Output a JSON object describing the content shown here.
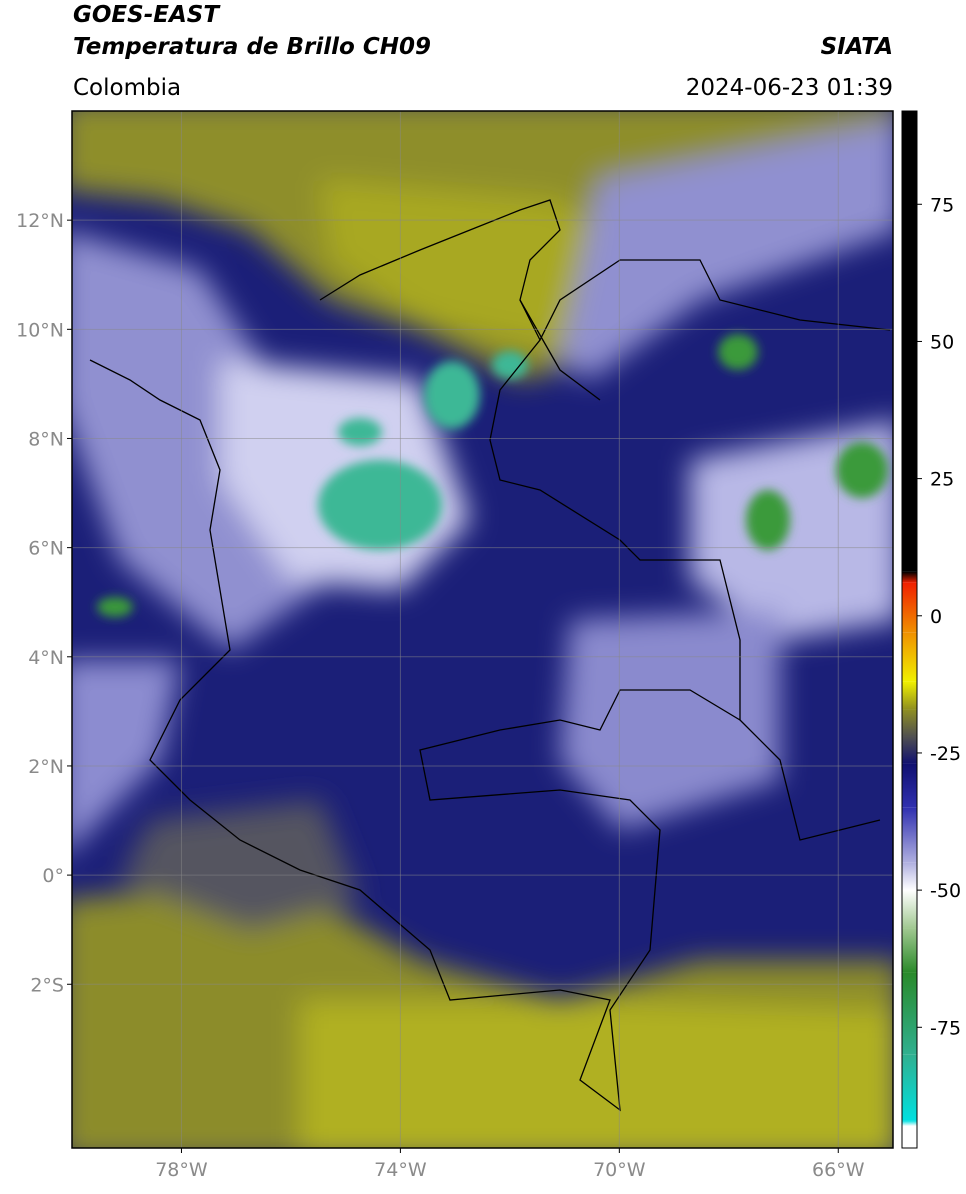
{
  "header": {
    "satellite": "GOES-EAST",
    "product": "Temperatura de Brillo CH09",
    "source": "SIATA",
    "region": "Colombia",
    "datetime": "2024-06-23 01:39"
  },
  "map": {
    "lon_range": [
      -80,
      -65
    ],
    "lat_range": [
      -5,
      14
    ],
    "grid": true,
    "lat_ticks": [
      {
        "value": 12,
        "label": "12°N"
      },
      {
        "value": 10,
        "label": "10°N"
      },
      {
        "value": 8,
        "label": "8°N"
      },
      {
        "value": 6,
        "label": "6°N"
      },
      {
        "value": 4,
        "label": "4°N"
      },
      {
        "value": 2,
        "label": "2°N"
      },
      {
        "value": 0,
        "label": "0°"
      },
      {
        "value": -2,
        "label": "2°S"
      }
    ],
    "lon_ticks": [
      {
        "value": -78,
        "label": "78°W"
      },
      {
        "value": -74,
        "label": "74°W"
      },
      {
        "value": -70,
        "label": "70°W"
      },
      {
        "value": -66,
        "label": "66°W"
      }
    ]
  },
  "colorbar": {
    "range": [
      -97,
      92
    ],
    "ticks": [
      75,
      50,
      25,
      0,
      -25,
      -50,
      -75
    ],
    "stops": [
      {
        "value": -97,
        "color": "#ffffff"
      },
      {
        "value": -93,
        "color": "#ffffff"
      },
      {
        "value": -92,
        "color": "#00e0e0"
      },
      {
        "value": -80,
        "color": "#30b090"
      },
      {
        "value": -65,
        "color": "#2a8a2a"
      },
      {
        "value": -57,
        "color": "#a0c890"
      },
      {
        "value": -50,
        "color": "#ffffff"
      },
      {
        "value": -45,
        "color": "#b0b0e0"
      },
      {
        "value": -35,
        "color": "#3030b0"
      },
      {
        "value": -27,
        "color": "#101070"
      },
      {
        "value": -22,
        "color": "#505050"
      },
      {
        "value": -17,
        "color": "#909020"
      },
      {
        "value": -12,
        "color": "#f0f000"
      },
      {
        "value": -3,
        "color": "#f09000"
      },
      {
        "value": 6,
        "color": "#f02000"
      },
      {
        "value": 8,
        "color": "#000000"
      },
      {
        "value": 92,
        "color": "#000000"
      }
    ]
  }
}
